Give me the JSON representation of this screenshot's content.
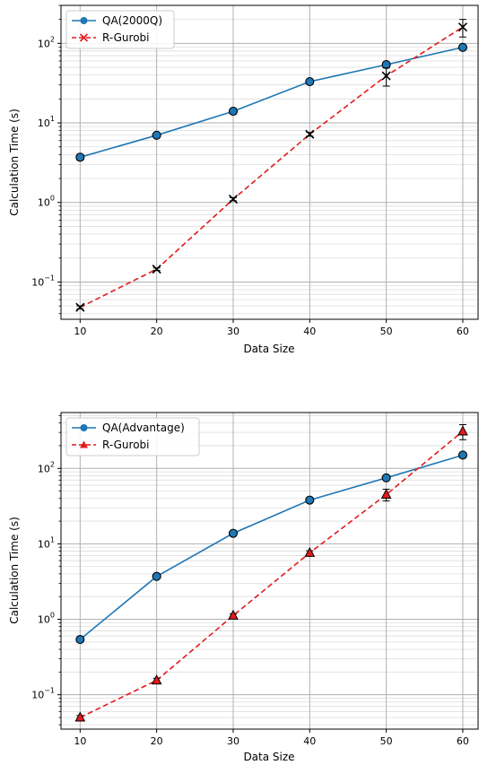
{
  "chart_data": [
    {
      "type": "line",
      "yscale": "log",
      "grid": true,
      "legend_position": "top-left",
      "xlabel": "Data Size",
      "ylabel": "Calculation Time (s)",
      "xlim": [
        7.5,
        62.0
      ],
      "ylim": [
        0.034,
        300
      ],
      "x_ticks": [
        10,
        20,
        30,
        40,
        50,
        60
      ],
      "y_ticks": [
        0.1,
        1,
        10,
        100
      ],
      "y_tick_labels": [
        {
          "base": "10",
          "exp": "−1"
        },
        {
          "base": "10",
          "exp": "0"
        },
        {
          "base": "10",
          "exp": "1"
        },
        {
          "base": "10",
          "exp": "2"
        }
      ],
      "series": [
        {
          "name": "QA(2000Q)",
          "style": "solid",
          "marker": "circle",
          "color": "#1f77b4",
          "x": [
            10,
            20,
            30,
            40,
            50,
            60
          ],
          "y": [
            3.7,
            7.0,
            14.0,
            33.0,
            54.0,
            89.0
          ],
          "err_low": [
            0.3,
            0.4,
            0.6,
            1.5,
            3.0,
            5.0
          ],
          "err_high": [
            0.3,
            0.4,
            0.6,
            1.5,
            3.0,
            5.0
          ]
        },
        {
          "name": "R-Gurobi",
          "style": "dashed",
          "marker": "x",
          "color": "#e31a1c",
          "x": [
            10,
            20,
            30,
            40,
            50,
            60
          ],
          "y": [
            0.048,
            0.145,
            1.1,
            7.2,
            39.0,
            160.0
          ],
          "err_low": [
            0.002,
            0.005,
            0.05,
            0.4,
            10.0,
            40.0
          ],
          "err_high": [
            0.002,
            0.005,
            0.05,
            0.4,
            10.0,
            40.0
          ]
        }
      ]
    },
    {
      "type": "line",
      "yscale": "log",
      "grid": true,
      "legend_position": "top-left",
      "xlabel": "Data Size",
      "ylabel": "Calculation Time (s)",
      "xlim": [
        7.5,
        62.0
      ],
      "ylim": [
        0.035,
        550
      ],
      "x_ticks": [
        10,
        20,
        30,
        40,
        50,
        60
      ],
      "y_ticks": [
        0.1,
        1,
        10,
        100
      ],
      "y_tick_labels": [
        {
          "base": "10",
          "exp": "−1"
        },
        {
          "base": "10",
          "exp": "0"
        },
        {
          "base": "10",
          "exp": "1"
        },
        {
          "base": "10",
          "exp": "2"
        }
      ],
      "series": [
        {
          "name": "QA(Advantage)",
          "style": "solid",
          "marker": "circle",
          "color": "#1f77b4",
          "x": [
            10,
            20,
            30,
            40,
            50,
            60
          ],
          "y": [
            0.54,
            3.7,
            13.8,
            38.0,
            75.0,
            150.0
          ],
          "err_low": [
            0.03,
            0.2,
            0.6,
            2.0,
            4.0,
            8.0
          ],
          "err_high": [
            0.03,
            0.2,
            0.6,
            2.0,
            4.0,
            8.0
          ]
        },
        {
          "name": "R-Gurobi",
          "style": "dashed",
          "marker": "triangle",
          "color": "#e31a1c",
          "x": [
            10,
            20,
            30,
            40,
            50,
            60
          ],
          "y": [
            0.05,
            0.155,
            1.12,
            7.6,
            45.0,
            310.0
          ],
          "err_low": [
            0.003,
            0.01,
            0.06,
            0.5,
            8.0,
            70.0
          ],
          "err_high": [
            0.003,
            0.01,
            0.06,
            0.5,
            8.0,
            70.0
          ]
        }
      ]
    }
  ]
}
